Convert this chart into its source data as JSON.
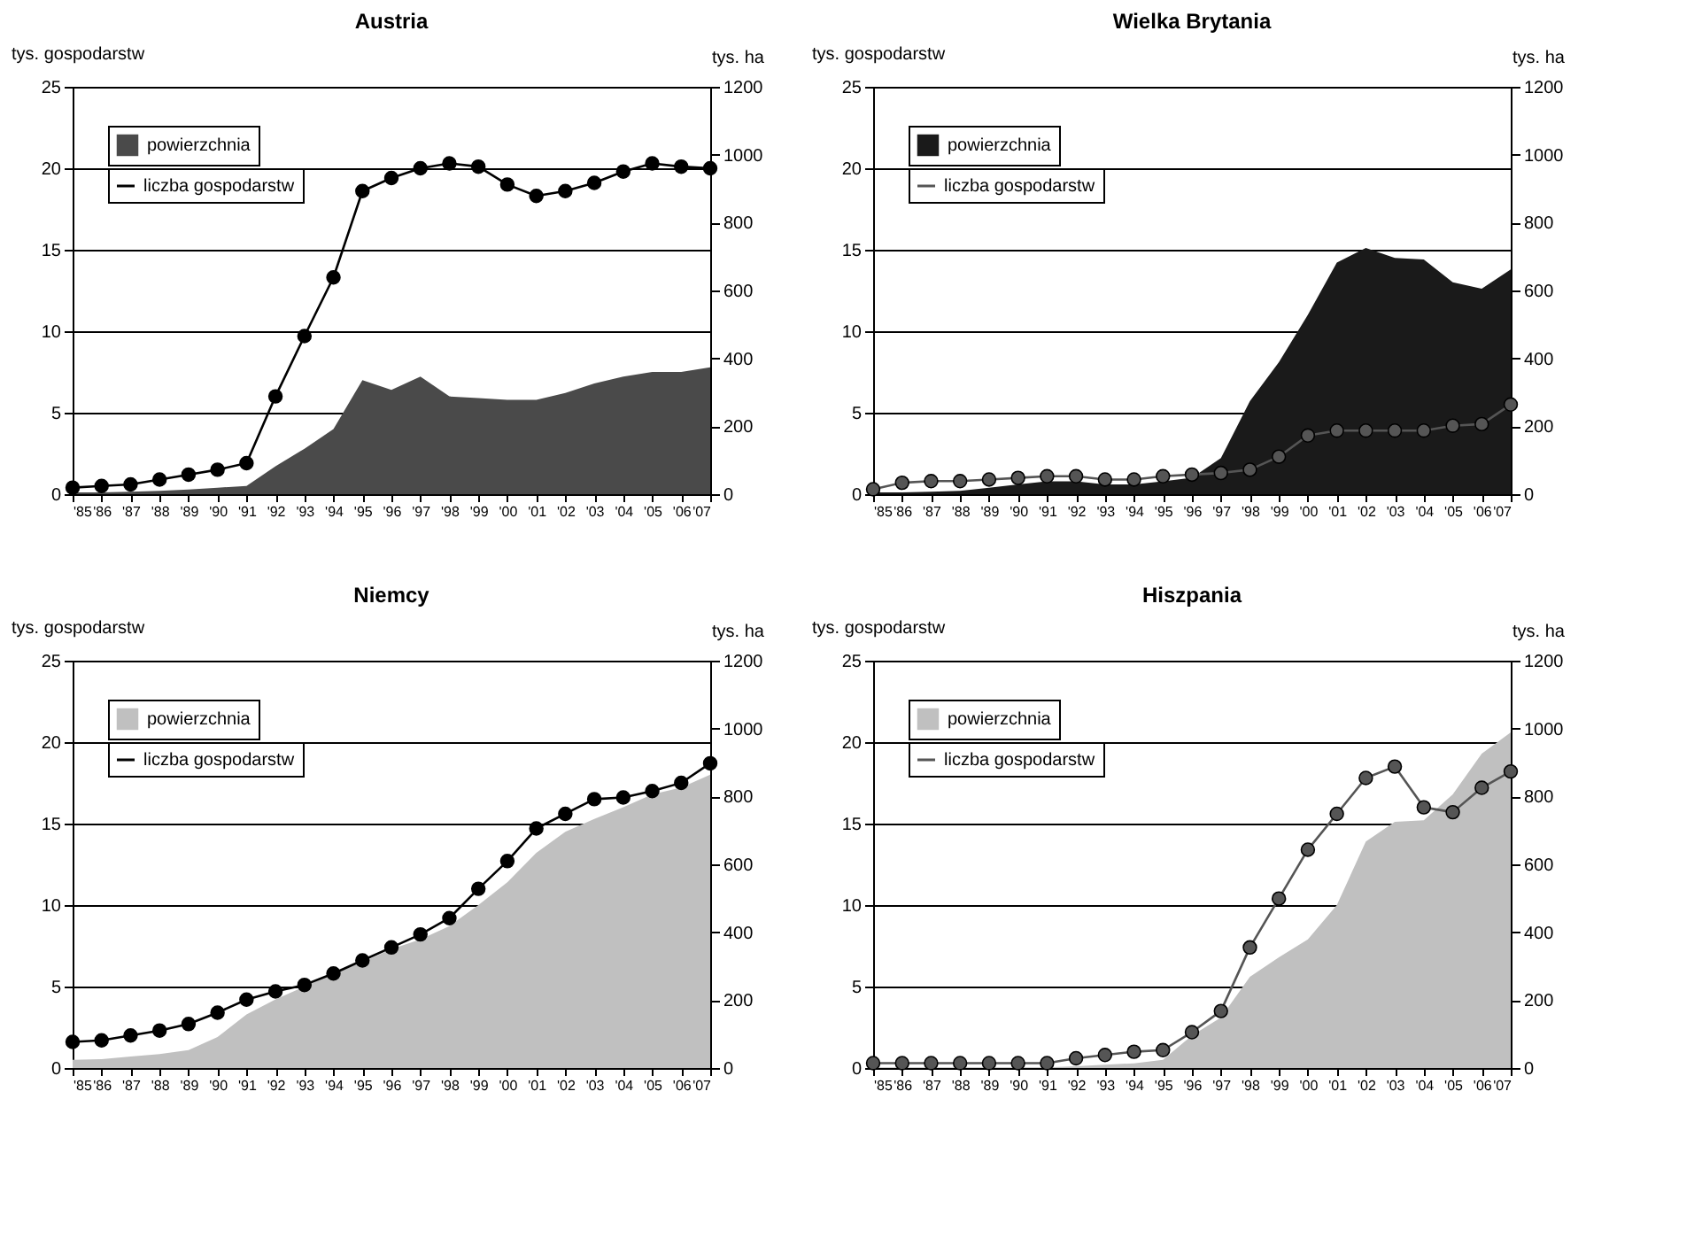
{
  "chart_data": [
    {
      "type": "line",
      "title": "Austria",
      "ylabel": "tys. gospodarstw",
      "y2label": "tys. ha",
      "categories": [
        "'85",
        "'86",
        "'87",
        "'88",
        "'89",
        "'90",
        "'91",
        "'92",
        "'93",
        "'94",
        "'95",
        "'96",
        "'97",
        "'98",
        "'99",
        "'00",
        "'01",
        "'02",
        "'03",
        "'04",
        "'05",
        "'06",
        "'07"
      ],
      "ylim": [
        0,
        25
      ],
      "yticks": [
        0,
        5,
        10,
        15,
        20,
        25
      ],
      "y2lim": [
        0,
        1200
      ],
      "y2ticks": [
        0,
        200,
        400,
        600,
        800,
        1000,
        1200
      ],
      "grid": "y",
      "legend": "top left",
      "series": [
        {
          "name": "powierzchnia",
          "type": "area",
          "axis": "y2",
          "color": "#4a4a4a",
          "values": [
            5,
            5,
            7,
            10,
            14,
            19,
            24,
            82,
            134,
            192,
            336,
            307,
            346,
            288,
            283,
            278,
            278,
            298,
            326,
            346,
            360,
            360,
            374
          ]
        },
        {
          "name": "liczba gospodarstw",
          "marker": "circle",
          "color": "#000000",
          "values": [
            0.4,
            0.5,
            0.6,
            0.9,
            1.2,
            1.5,
            1.9,
            6.0,
            9.7,
            13.3,
            18.6,
            19.4,
            20.0,
            20.3,
            20.1,
            19.0,
            18.3,
            18.6,
            19.1,
            19.8,
            20.3,
            20.1,
            20.0
          ]
        }
      ]
    },
    {
      "type": "line",
      "title": "Wielka Brytania",
      "ylabel": "tys. gospodarstw",
      "y2label": "tys. ha",
      "categories": [
        "'85",
        "'86",
        "'87",
        "'88",
        "'89",
        "'90",
        "'91",
        "'92",
        "'93",
        "'94",
        "'95",
        "'96",
        "'97",
        "'98",
        "'99",
        "'00",
        "'01",
        "'02",
        "'03",
        "'04",
        "'05",
        "'06",
        "'07"
      ],
      "ylim": [
        0,
        25
      ],
      "yticks": [
        0,
        5,
        10,
        15,
        20,
        25
      ],
      "y2lim": [
        0,
        1200
      ],
      "y2ticks": [
        0,
        200,
        400,
        600,
        800,
        1000,
        1200
      ],
      "grid": "y",
      "legend": "top left",
      "series": [
        {
          "name": "powierzchnia",
          "type": "area",
          "axis": "y2",
          "color": "#1a1a1a",
          "values": [
            5,
            5,
            7,
            10,
            19,
            29,
            38,
            38,
            29,
            29,
            38,
            48,
            106,
            274,
            389,
            528,
            682,
            725,
            696,
            691,
            624,
            605,
            662
          ]
        },
        {
          "name": "liczba gospodarstw",
          "marker": "circle",
          "color": "#555555",
          "values": [
            0.3,
            0.7,
            0.8,
            0.8,
            0.9,
            1.0,
            1.1,
            1.1,
            0.9,
            0.9,
            1.1,
            1.2,
            1.3,
            1.5,
            2.3,
            3.6,
            3.9,
            3.9,
            3.9,
            3.9,
            4.2,
            4.3,
            5.5
          ]
        }
      ]
    },
    {
      "type": "line",
      "title": "Niemcy",
      "ylabel": "tys. gospodarstw",
      "y2label": "tys. ha",
      "categories": [
        "'85",
        "'86",
        "'87",
        "'88",
        "'89",
        "'90",
        "'91",
        "'92",
        "'93",
        "'94",
        "'95",
        "'96",
        "'97",
        "'98",
        "'99",
        "'00",
        "'01",
        "'02",
        "'03",
        "'04",
        "'05",
        "'06",
        "'07"
      ],
      "ylim": [
        0,
        25
      ],
      "yticks": [
        0,
        5,
        10,
        15,
        20,
        25
      ],
      "y2lim": [
        0,
        1200
      ],
      "y2ticks": [
        0,
        200,
        400,
        600,
        800,
        1000,
        1200
      ],
      "grid": "y",
      "legend": "top left",
      "series": [
        {
          "name": "powierzchnia",
          "type": "area",
          "axis": "y2",
          "color": "#c0c0c0",
          "values": [
            24,
            26,
            34,
            41,
            53,
            91,
            158,
            202,
            240,
            278,
            312,
            350,
            379,
            418,
            480,
            547,
            634,
            696,
            734,
            768,
            806,
            826,
            864
          ]
        },
        {
          "name": "liczba gospodarstw",
          "marker": "circle",
          "color": "#000000",
          "values": [
            1.6,
            1.7,
            2.0,
            2.3,
            2.7,
            3.4,
            4.2,
            4.7,
            5.1,
            5.8,
            6.6,
            7.4,
            8.2,
            9.2,
            11.0,
            12.7,
            14.7,
            15.6,
            16.5,
            16.6,
            17.0,
            17.5,
            18.7
          ]
        }
      ]
    },
    {
      "type": "line",
      "title": "Hiszpania",
      "ylabel": "tys. gospodarstw",
      "y2label": "tys. ha",
      "categories": [
        "'85",
        "'86",
        "'87",
        "'88",
        "'89",
        "'90",
        "'91",
        "'92",
        "'93",
        "'94",
        "'95",
        "'96",
        "'97",
        "'98",
        "'99",
        "'00",
        "'01",
        "'02",
        "'03",
        "'04",
        "'05",
        "'06",
        "'07"
      ],
      "ylim": [
        0,
        25
      ],
      "yticks": [
        0,
        5,
        10,
        15,
        20,
        25
      ],
      "y2lim": [
        0,
        1200
      ],
      "y2ticks": [
        0,
        200,
        400,
        600,
        800,
        1000,
        1200
      ],
      "grid": "y",
      "legend": "top left",
      "series": [
        {
          "name": "powierzchnia",
          "type": "area",
          "axis": "y2",
          "color": "#c0c0c0",
          "values": [
            2,
            2,
            2,
            2,
            2,
            2,
            2,
            5,
            10,
            14,
            24,
            96,
            149,
            269,
            326,
            379,
            480,
            667,
            725,
            730,
            806,
            926,
            989
          ]
        },
        {
          "name": "liczba gospodarstw",
          "marker": "circle",
          "color": "#555555",
          "values": [
            0.3,
            0.3,
            0.3,
            0.3,
            0.3,
            0.3,
            0.3,
            0.6,
            0.8,
            1.0,
            1.1,
            2.2,
            3.5,
            7.4,
            10.4,
            13.4,
            15.6,
            17.8,
            18.5,
            16.0,
            15.7,
            17.2,
            18.2
          ]
        }
      ]
    }
  ]
}
